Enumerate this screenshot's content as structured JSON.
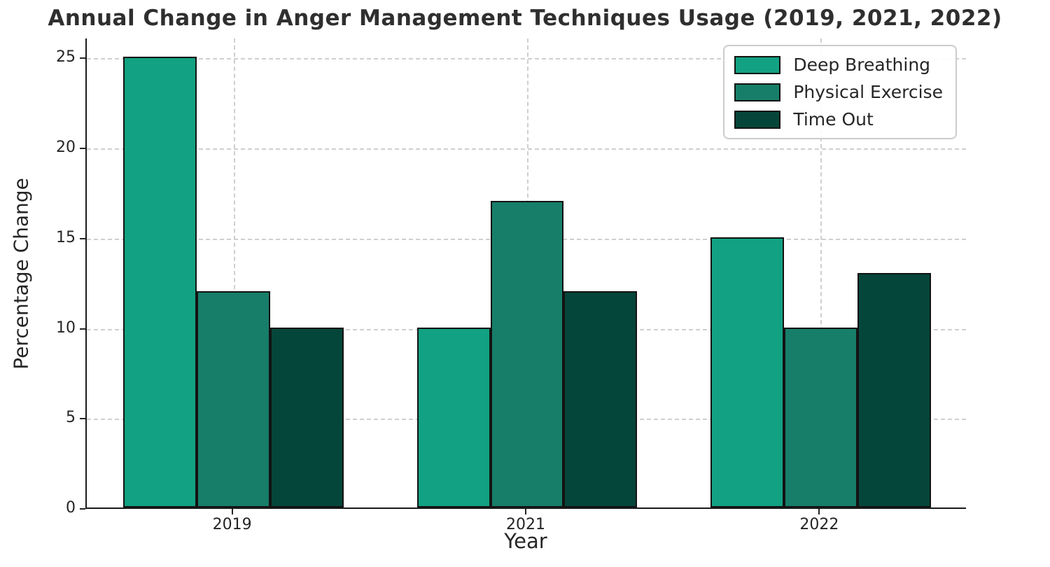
{
  "chart_data": {
    "type": "bar",
    "title": "Annual Change in Anger Management Techniques Usage (2019, 2021, 2022)",
    "xlabel": "Year",
    "ylabel": "Percentage Change",
    "categories": [
      "2019",
      "2021",
      "2022"
    ],
    "series": [
      {
        "name": "Deep Breathing",
        "color": "#12a182",
        "values": [
          25,
          10,
          15
        ]
      },
      {
        "name": "Physical Exercise",
        "color": "#177e69",
        "values": [
          12,
          17,
          10
        ]
      },
      {
        "name": "Time Out",
        "color": "#05463a",
        "values": [
          10,
          12,
          13
        ]
      }
    ],
    "yticks": [
      0,
      5,
      10,
      15,
      20,
      25
    ],
    "ylim": [
      0,
      26.1
    ],
    "grid": true,
    "legend_position": "upper right",
    "bar_edge_color": "#131313",
    "grid_color": "#cfcfcf",
    "spine_color": "#1a1a1a",
    "text_color": "#262626",
    "title_color": "#2f2f2f",
    "background_color": "#ffffff"
  }
}
